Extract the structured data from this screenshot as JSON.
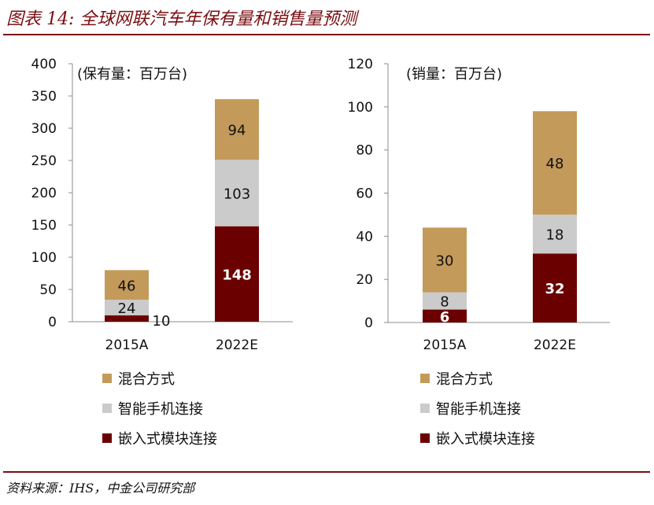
{
  "header": {
    "title": "图表 14: 全球网联汽车年保有量和销售量预测"
  },
  "footer": {
    "source": "资料来源：IHS，中金公司研究部"
  },
  "colors": {
    "accent": "#7b0e12",
    "hybrid": "#c49a5a",
    "smartphone": "#cbcbcb",
    "embedded": "#6b0000"
  },
  "chart_data": [
    {
      "type": "bar",
      "stacked": true,
      "unit_label": "(保有量：百万台)",
      "categories": [
        "2015A",
        "2022E"
      ],
      "ylim": [
        0,
        400
      ],
      "yticks": [
        0,
        50,
        100,
        150,
        200,
        250,
        300,
        350,
        400
      ],
      "grid": false,
      "legend_position": "bottom",
      "series": [
        {
          "name": "嵌入式模块连接",
          "color": "#6b0000",
          "values": [
            10,
            148
          ],
          "labels": [
            "10",
            "148"
          ]
        },
        {
          "name": "智能手机连接",
          "color": "#cbcbcb",
          "values": [
            24,
            103
          ],
          "labels": [
            "24",
            "103"
          ]
        },
        {
          "name": "混合方式",
          "color": "#c49a5a",
          "values": [
            46,
            94
          ],
          "labels": [
            "46",
            "94"
          ]
        }
      ]
    },
    {
      "type": "bar",
      "stacked": true,
      "unit_label": "(销量：百万台)",
      "categories": [
        "2015A",
        "2022E"
      ],
      "ylim": [
        0,
        120
      ],
      "yticks": [
        0,
        20,
        40,
        60,
        80,
        100,
        120
      ],
      "grid": false,
      "legend_position": "bottom",
      "series": [
        {
          "name": "嵌入式模块连接",
          "color": "#6b0000",
          "values": [
            6,
            32
          ],
          "labels": [
            "6",
            "32"
          ]
        },
        {
          "name": "智能手机连接",
          "color": "#cbcbcb",
          "values": [
            8,
            18
          ],
          "labels": [
            "8",
            "18"
          ]
        },
        {
          "name": "混合方式",
          "color": "#c49a5a",
          "values": [
            30,
            48
          ],
          "labels": [
            "30",
            "48"
          ]
        }
      ]
    }
  ]
}
